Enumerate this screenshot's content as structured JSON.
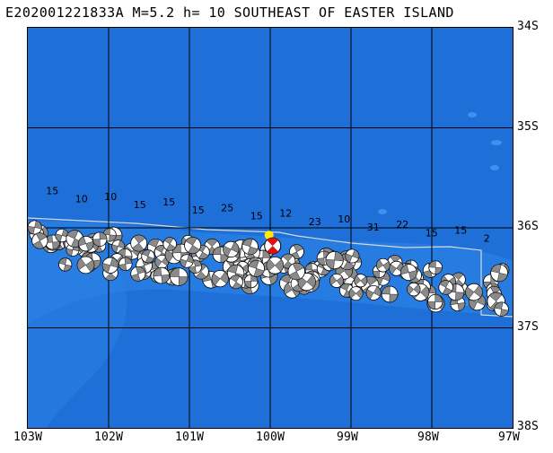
{
  "header": {
    "title": "E202001221833A  M=5.2  h= 10  SOUTHEAST OF EASTER ISLAND"
  },
  "map": {
    "lon_range": [
      -103,
      -97
    ],
    "lat_range": [
      -38,
      -34
    ],
    "x_labels": [
      "103W",
      "102W",
      "101W",
      "100W",
      "99W",
      "98W",
      "97W"
    ],
    "y_labels": [
      "34S",
      "35S",
      "36S",
      "37S",
      "38S"
    ],
    "colors": {
      "ocean": "#1f6fd8",
      "ocean_shallow": "#2c84e6",
      "grid": "#000000",
      "boundary": "#d8d8d8",
      "mechanism_fill": "#8a8a8a",
      "mechanism_white": "#ffffff",
      "event_marker": "#ffee00",
      "main_event": "#e01010"
    },
    "event": {
      "lon": -99.97,
      "lat": -36.18,
      "magnitude": 5.2,
      "depth_km": 10
    },
    "label_values": [
      "15",
      "10",
      "10",
      "15",
      "15",
      "15",
      "25",
      "15",
      "12",
      "23",
      "10",
      "31",
      "22",
      "15",
      "15",
      "2"
    ]
  }
}
